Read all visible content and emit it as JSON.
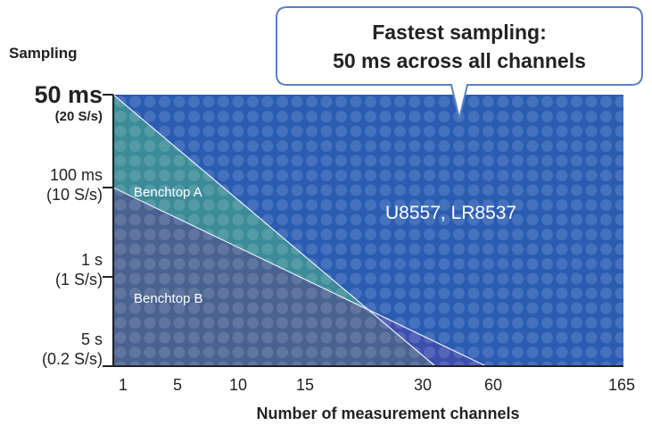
{
  "chart_data": {
    "type": "area",
    "title": "",
    "xlabel": "Number of measurement channels",
    "ylabel": "Sampling",
    "x_ticks": [
      "1",
      "5",
      "10",
      "15",
      "30",
      "60",
      "165"
    ],
    "y_ticks": [
      {
        "value": "50 ms",
        "sub": "(20 S/s)",
        "emphasis": true
      },
      {
        "value": "100 ms",
        "sub": "(10 S/s)",
        "emphasis": false
      },
      {
        "value": "1 s",
        "sub": "(1 S/s)",
        "emphasis": false
      },
      {
        "value": "5 s",
        "sub": "(0.2 S/s)",
        "emphasis": false
      }
    ],
    "series": [
      {
        "name": "Benchtop A",
        "start": {
          "channels": 0,
          "sampling": "50 ms"
        },
        "end": {
          "channels": 30,
          "sampling": "5 s"
        },
        "color": "#3b8c98"
      },
      {
        "name": "Benchtop B",
        "start": {
          "channels": 0,
          "sampling": "100 ms"
        },
        "end": {
          "channels": 60,
          "sampling": "5 s"
        },
        "color": "#4a6290"
      },
      {
        "name": "U8557, LR8537",
        "start": {
          "channels": 0,
          "sampling": "50 ms"
        },
        "end": {
          "channels": 165,
          "sampling": "50 ms"
        },
        "color": "#2a5cb2"
      }
    ],
    "annotation": {
      "line1": "Fastest sampling:",
      "line2": "50 ms across all channels"
    }
  }
}
